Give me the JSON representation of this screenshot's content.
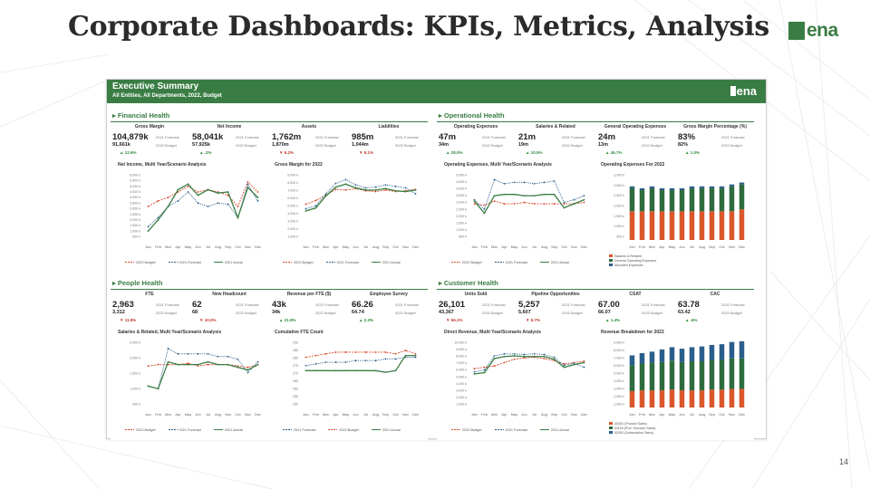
{
  "slide": {
    "title": "Corporate Dashboards: KPIs, Metrics, Analysis",
    "logo": "ena",
    "page_number": "14"
  },
  "dashboard": {
    "title": "Executive Summary",
    "subtitle": "All Entities, All Departments, 2022, Budget",
    "logo": "ena"
  },
  "colors": {
    "brand": "#3a7d44",
    "budget": "#d9472b",
    "forecast": "#2a5e8c",
    "actual": "#3a7d44"
  },
  "months": [
    "Jan",
    "Feb",
    "Mar",
    "Apr",
    "May",
    "Jun",
    "Jul",
    "Aug",
    "Sep",
    "Oct",
    "Nov",
    "Dec"
  ],
  "panels": {
    "financial": {
      "title": "Financial Health",
      "kpis": [
        {
          "label": "Gross Margin",
          "main": "104,879k",
          "main_label": "2021 Forecast",
          "sec": "91,661k",
          "sec_label": "2022 Budget",
          "var": "▲ 12.6%",
          "dir": "up"
        },
        {
          "label": "Net Income",
          "main": "58,041k",
          "main_label": "2021 Forecast",
          "sec": "57,925k",
          "sec_label": "2022 Budget",
          "var": "▲ .2%",
          "dir": "up"
        },
        {
          "label": "Assets",
          "main": "1,762m",
          "main_label": "2021 Forecast",
          "sec": "1,870m",
          "sec_label": "2022 Budget",
          "var": "▼ 6.2%",
          "dir": "down"
        },
        {
          "label": "Liabilities",
          "main": "985m",
          "main_label": "2021 Forecast",
          "sec": "1,044m",
          "sec_label": "2022 Budget",
          "var": "▼ 6.1%",
          "dir": "down"
        }
      ],
      "chart1": {
        "title": "Net Income, Multi Year/Scenario Analysis",
        "y_ticks": [
          "6,000 k",
          "5,500 k",
          "5,000 k",
          "4,500 k",
          "4,000 k",
          "3,500 k",
          "3,000 k",
          "2,500 k",
          "2,000 k",
          "1,500 k",
          "1,000 k",
          "500 k"
        ],
        "legend": [
          "2022 Budget",
          "2021 Forecast",
          "2021 Actual"
        ]
      },
      "chart2": {
        "title": "Gross Margin for 2022",
        "y_ticks": [
          "9,000 k",
          "8,000 k",
          "7,000 k",
          "6,000 k",
          "5,000 k",
          "4,000 k",
          "3,000 k",
          "2,000 k",
          "1,000 k"
        ],
        "legend": [
          "2022 Budget",
          "2021 Forecast",
          "2021 Actual"
        ]
      }
    },
    "operational": {
      "title": "Operational Health",
      "kpis": [
        {
          "label": "Operating Expenses",
          "main": "47m",
          "main_label": "2021 Forecast",
          "sec": "34m",
          "sec_label": "2022 Budget",
          "var": "▲ 28.0%",
          "dir": "up"
        },
        {
          "label": "Salaries & Related",
          "main": "21m",
          "main_label": "2021 Forecast",
          "sec": "19m",
          "sec_label": "2022 Budget",
          "var": "▲ 10.9%",
          "dir": "up"
        },
        {
          "label": "General Operating Expenses",
          "main": "24m",
          "main_label": "2021 Forecast",
          "sec": "13m",
          "sec_label": "2022 Budget",
          "var": "▲ 46.7%",
          "dir": "up"
        },
        {
          "label": "Gross Margin Percentage (%)",
          "main": "83%",
          "main_label": "2021 Forecast",
          "sec": "82%",
          "sec_label": "2022 Budget",
          "var": "▲ 1.0%",
          "dir": "up"
        }
      ],
      "chart1": {
        "title": "Operating Expenses, Multi Year/Scenario Analysis",
        "y_ticks": [
          "5,000 k",
          "4,500 k",
          "4,000 k",
          "3,500 k",
          "3,000 k",
          "2,500 k",
          "2,000 k",
          "1,500 k",
          "1,000 k",
          "500 k"
        ],
        "legend": [
          "2022 Budget",
          "2021 Forecast",
          "2021 Actual"
        ]
      },
      "chart2": {
        "title": "Operating Expenses For 2022",
        "y_ticks": [
          "3,500 k",
          "3,000 k",
          "2,500 k",
          "2,000 k",
          "1,500 k",
          "1,000 k",
          "500 k"
        ],
        "legend": [
          "Salaries & Related",
          "General Operating Expenses",
          "Allocated Expenses"
        ]
      }
    },
    "people": {
      "title": "People Health",
      "kpis": [
        {
          "label": "FTE",
          "main": "2,963",
          "main_label": "2021 Forecast",
          "sec": "3,312",
          "sec_label": "2022 Budget",
          "var": "▼ 11.8%",
          "dir": "down"
        },
        {
          "label": "New Headcount",
          "main": "62",
          "main_label": "2021 Forecast",
          "sec": "68",
          "sec_label": "2022 Budget",
          "var": "▼ 10.0%",
          "dir": "down"
        },
        {
          "label": "Revenue per FTE ($)",
          "main": "43k",
          "main_label": "2021 Forecast",
          "sec": "34k",
          "sec_label": "2022 Budget",
          "var": "▲ 21.9%",
          "dir": "up"
        },
        {
          "label": "Employee Survey",
          "main": "66.26",
          "main_label": "2021 Forecast",
          "sec": "64.74",
          "sec_label": "2022 Budget",
          "var": "▲ 2.3%",
          "dir": "up"
        }
      ],
      "chart1": {
        "title": "Salaries & Related, Multi Year/Scenario Analysis",
        "y_ticks": [
          "2,500 k",
          "2,000 k",
          "1,500 k",
          "1,000 k",
          "500 k"
        ],
        "legend": [
          "2022 Budget",
          "2021 Forecast",
          "2021 Actual"
        ]
      },
      "chart2": {
        "title": "Cumulative FTE Count",
        "y_ticks": [
          "290",
          "285",
          "280",
          "275",
          "270",
          "265",
          "260",
          "255",
          "250"
        ],
        "legend": [
          "2021 Forecast",
          "2022 Budget",
          "2021 Actual"
        ]
      }
    },
    "customer": {
      "title": "Customer Health",
      "kpis": [
        {
          "label": "Units Sold",
          "main": "26,101",
          "main_label": "2021 Forecast",
          "sec": "43,367",
          "sec_label": "2022 Budget",
          "var": "▼ 66.1%",
          "dir": "down"
        },
        {
          "label": "Pipeline Opportunities",
          "main": "5,257",
          "main_label": "2021 Forecast",
          "sec": "5,607",
          "sec_label": "2022 Budget",
          "var": "▼ 6.7%",
          "dir": "down"
        },
        {
          "label": "CSAT",
          "main": "67.00",
          "main_label": "2021 Forecast",
          "sec": "66.07",
          "sec_label": "2022 Budget",
          "var": "▲ 1.4%",
          "dir": "up"
        },
        {
          "label": "CAC",
          "main": "63.78",
          "main_label": "2021 Forecast",
          "sec": "63.42",
          "sec_label": "2022 Budget",
          "var": "▲ .6%",
          "dir": "up"
        }
      ],
      "chart1": {
        "title": "Direct Revenue, Multi Year/Scenario Analysis",
        "y_ticks": [
          "10,000 k",
          "9,000 k",
          "8,000 k",
          "7,000 k",
          "6,000 k",
          "5,000 k",
          "4,000 k",
          "3,000 k",
          "2,000 k",
          "1,000 k"
        ],
        "legend": [
          "2022 Budget",
          "2021 Forecast",
          "2021 Actual"
        ]
      },
      "chart2": {
        "title": "Revenue Breakdown for 2022",
        "y_ticks": [
          "9,000 k",
          "8,000 k",
          "7,000 k",
          "6,000 k",
          "5,000 k",
          "4,000 k",
          "3,000 k",
          "2,000 k",
          "1,000 k"
        ],
        "legend": [
          "40000 (Product Sales)",
          "41100 (Prof. Services Sales)",
          "42000 (Subscription Sales)"
        ]
      }
    }
  },
  "chart_data": [
    {
      "id": "fin1",
      "type": "line",
      "title": "Net Income, Multi Year/Scenario Analysis",
      "categories": [
        "Jan",
        "Feb",
        "Mar",
        "Apr",
        "May",
        "Jun",
        "Jul",
        "Aug",
        "Sep",
        "Oct",
        "Nov",
        "Dec"
      ],
      "ylim": [
        0,
        6000
      ],
      "series": [
        {
          "name": "2022 Budget",
          "color": "#d9472b",
          "style": "dash",
          "values": [
            3000,
            3500,
            3800,
            4300,
            4800,
            4300,
            4500,
            4300,
            4000,
            3000,
            5200,
            4300
          ]
        },
        {
          "name": "2021 Forecast",
          "color": "#2a5e8c",
          "style": "dot",
          "values": [
            1200,
            2000,
            3000,
            3500,
            4300,
            3300,
            3000,
            3300,
            3200,
            2000,
            5000,
            3500
          ]
        },
        {
          "name": "2021 Actual",
          "color": "#3a7d44",
          "style": "solid",
          "values": [
            800,
            1800,
            3000,
            4500,
            5000,
            4000,
            4500,
            4200,
            4300,
            2000,
            4700,
            3800
          ]
        }
      ]
    },
    {
      "id": "fin2",
      "type": "line",
      "title": "Gross Margin for 2022",
      "categories": [
        "Jan",
        "Feb",
        "Mar",
        "Apr",
        "May",
        "Jun",
        "Jul",
        "Aug",
        "Sep",
        "Oct",
        "Nov",
        "Dec"
      ],
      "ylim": [
        0,
        9000
      ],
      "series": [
        {
          "name": "2022 Budget",
          "color": "#d9472b",
          "style": "dash",
          "values": [
            4800,
            5300,
            6000,
            6800,
            6700,
            6900,
            6600,
            6500,
            6700,
            6500,
            6600,
            6800
          ]
        },
        {
          "name": "2021 Forecast",
          "color": "#2a5e8c",
          "style": "dot",
          "values": [
            4200,
            4600,
            6200,
            7600,
            8100,
            7400,
            7000,
            7100,
            7400,
            7200,
            7000,
            6200
          ]
        },
        {
          "name": "2021 Actual",
          "color": "#3a7d44",
          "style": "solid",
          "values": [
            3900,
            4300,
            5900,
            7100,
            7500,
            7000,
            6700,
            6700,
            6900,
            6600,
            6500,
            6700
          ]
        }
      ]
    },
    {
      "id": "ops1",
      "type": "line",
      "title": "Operating Expenses, Multi Year/Scenario Analysis",
      "categories": [
        "Jan",
        "Feb",
        "Mar",
        "Apr",
        "May",
        "Jun",
        "Jul",
        "Aug",
        "Sep",
        "Oct",
        "Nov",
        "Dec"
      ],
      "ylim": [
        0,
        5000
      ],
      "series": [
        {
          "name": "2022 Budget",
          "color": "#d9472b",
          "style": "dash",
          "values": [
            2700,
            2600,
            2900,
            2700,
            2700,
            2800,
            2700,
            2700,
            2700,
            2700,
            2700,
            2800
          ]
        },
        {
          "name": "2021 Forecast",
          "color": "#2a5e8c",
          "style": "dot",
          "values": [
            3000,
            2300,
            4500,
            4200,
            4300,
            4300,
            4200,
            4300,
            4400,
            2800,
            3000,
            3300
          ]
        },
        {
          "name": "2021 Actual",
          "color": "#3a7d44",
          "style": "solid",
          "values": [
            2900,
            2000,
            3300,
            3400,
            3400,
            3300,
            3300,
            3400,
            3400,
            2400,
            2700,
            3000
          ]
        }
      ]
    },
    {
      "id": "ops2",
      "type": "bar",
      "stacked": true,
      "title": "Operating Expenses For 2022",
      "categories": [
        "Jan",
        "Feb",
        "Mar",
        "Apr",
        "May",
        "Jun",
        "Jul",
        "Aug",
        "Sep",
        "Oct",
        "Nov",
        "Dec"
      ],
      "ylim": [
        0,
        3500
      ],
      "series": [
        {
          "name": "Salaries & Related",
          "color": "#d9572b",
          "values": [
            1500,
            1500,
            1500,
            1500,
            1500,
            1500,
            1500,
            1500,
            1500,
            1500,
            1500,
            1600
          ]
        },
        {
          "name": "General Operating Expenses",
          "color": "#2e6b3e",
          "values": [
            1200,
            1100,
            1200,
            1100,
            1100,
            1100,
            1200,
            1200,
            1200,
            1200,
            1300,
            1300
          ]
        },
        {
          "name": "Allocated Expenses",
          "color": "#2a5e8c",
          "values": [
            100,
            100,
            100,
            100,
            100,
            100,
            100,
            100,
            100,
            100,
            100,
            100
          ]
        }
      ]
    },
    {
      "id": "ppl1",
      "type": "line",
      "title": "Salaries & Related, Multi Year/Scenario Analysis",
      "categories": [
        "Jan",
        "Feb",
        "Mar",
        "Apr",
        "May",
        "Jun",
        "Jul",
        "Aug",
        "Sep",
        "Oct",
        "Nov",
        "Dec"
      ],
      "ylim": [
        0,
        2500
      ],
      "series": [
        {
          "name": "2022 Budget",
          "color": "#d9472b",
          "style": "dash",
          "values": [
            1550,
            1600,
            1600,
            1600,
            1650,
            1550,
            1600,
            1600,
            1600,
            1550,
            1500,
            1600
          ]
        },
        {
          "name": "2021 Forecast",
          "color": "#2a5e8c",
          "style": "dot",
          "values": [
            800,
            700,
            2200,
            2000,
            2000,
            2000,
            2000,
            1900,
            1900,
            1800,
            1300,
            1700
          ]
        },
        {
          "name": "2021 Actual",
          "color": "#3a7d44",
          "style": "solid",
          "values": [
            800,
            700,
            1700,
            1600,
            1600,
            1600,
            1700,
            1600,
            1600,
            1500,
            1400,
            1600
          ]
        }
      ]
    },
    {
      "id": "ppl2",
      "type": "line",
      "title": "Cumulative FTE Count",
      "categories": [
        "Jan",
        "Feb",
        "Mar",
        "Apr",
        "May",
        "Jun",
        "Jul",
        "Aug",
        "Sep",
        "Oct",
        "Nov",
        "Dec"
      ],
      "ylim": [
        250,
        290
      ],
      "series": [
        {
          "name": "2021 Forecast",
          "color": "#2a5e8c",
          "style": "dot",
          "values": [
            275,
            276,
            277,
            277,
            277,
            278,
            278,
            278,
            279,
            279,
            280,
            280
          ]
        },
        {
          "name": "2022 Budget",
          "color": "#d9472b",
          "style": "dash",
          "values": [
            280,
            281,
            282,
            283,
            283,
            283,
            283,
            283,
            283,
            282,
            284,
            282
          ]
        },
        {
          "name": "2021 Actual",
          "color": "#3a7d44",
          "style": "solid",
          "values": [
            272,
            272,
            272,
            272,
            272,
            272,
            272,
            272,
            271,
            272,
            281,
            281
          ]
        }
      ]
    },
    {
      "id": "cus1",
      "type": "line",
      "title": "Direct Revenue, Multi Year/Scenario Analysis",
      "categories": [
        "Jan",
        "Feb",
        "Mar",
        "Apr",
        "May",
        "Jun",
        "Jul",
        "Aug",
        "Sep",
        "Oct",
        "Nov",
        "Dec"
      ],
      "ylim": [
        0,
        10000
      ],
      "series": [
        {
          "name": "2022 Budget",
          "color": "#d9472b",
          "style": "dash",
          "values": [
            5800,
            6000,
            6200,
            6700,
            7200,
            7400,
            7500,
            7300,
            7000,
            6500,
            6700,
            6900
          ]
        },
        {
          "name": "2021 Forecast",
          "color": "#2a5e8c",
          "style": "dot",
          "values": [
            5300,
            5600,
            7700,
            8000,
            8000,
            7900,
            8000,
            7900,
            7500,
            6300,
            6600,
            6000
          ]
        },
        {
          "name": "2021 Actual",
          "color": "#3a7d44",
          "style": "solid",
          "values": [
            5000,
            5200,
            7300,
            7600,
            7700,
            7600,
            7600,
            7600,
            7200,
            6000,
            6400,
            6700
          ]
        }
      ]
    },
    {
      "id": "cus2",
      "type": "bar",
      "stacked": true,
      "title": "Revenue Breakdown for 2022",
      "categories": [
        "Jan",
        "Feb",
        "Mar",
        "Apr",
        "May",
        "Jun",
        "Jul",
        "Aug",
        "Sep",
        "Oct",
        "Nov",
        "Dec"
      ],
      "ylim": [
        0,
        9000
      ],
      "series": [
        {
          "name": "40000 (Product Sales)",
          "color": "#d9572b",
          "values": [
            2200,
            2300,
            2300,
            2300,
            2400,
            2300,
            2300,
            2300,
            2400,
            2400,
            2500,
            2500
          ]
        },
        {
          "name": "41100 (Prof. Services Sales)",
          "color": "#2e6b3e",
          "values": [
            3500,
            3600,
            3700,
            3800,
            3900,
            3800,
            3900,
            3900,
            4000,
            4000,
            4100,
            4100
          ]
        },
        {
          "name": "42000 (Subscription Sales)",
          "color": "#2a5e8c",
          "values": [
            1300,
            1400,
            1500,
            1700,
            1800,
            1800,
            1900,
            2000,
            2000,
            2100,
            2200,
            2300
          ]
        }
      ]
    }
  ]
}
